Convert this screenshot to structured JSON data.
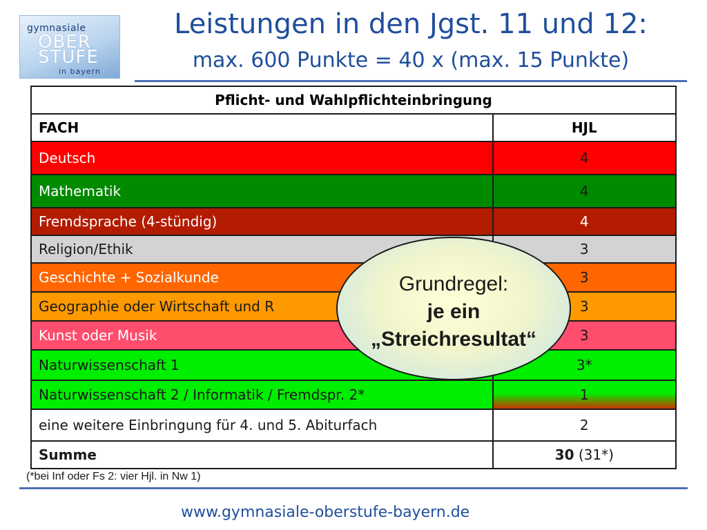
{
  "logo": {
    "line1": "gymnasiale",
    "line2": "OBER",
    "line3": "STUFE",
    "line4": "in bayern"
  },
  "title": {
    "main": "Leistungen in den Jgst. 11 und 12:",
    "sub": "max. 600 Punkte = 40 x (max. 15 Punkte)"
  },
  "table": {
    "heading": "Pflicht- und Wahlpflichteinbringung",
    "columns": [
      "FACH",
      "HJL"
    ],
    "rows": [
      {
        "fach": "Deutsch",
        "hjl": "4",
        "color": "#ff0000"
      },
      {
        "fach": "Mathematik",
        "hjl": "4",
        "color": "#008a00"
      },
      {
        "fach": "Fremdsprache (4-stündig)",
        "hjl": "4",
        "color": "#b31c00"
      },
      {
        "fach": "Religion/Ethik",
        "hjl": "3",
        "color": "#d3d3d3"
      },
      {
        "fach": "Geschichte + Sozialkunde",
        "hjl": "3",
        "color": "#ff6600"
      },
      {
        "fach": "Geographie oder Wirtschaft und R",
        "hjl": "3",
        "color": "#ff9900"
      },
      {
        "fach": "Kunst oder Musik",
        "hjl": "3",
        "color": "#ff4d6d"
      },
      {
        "fach": "Naturwissenschaft 1",
        "hjl": "3*",
        "color": "#00ee00"
      },
      {
        "fach": "Naturwissenschaft 2 / Informatik  / Fremdspr. 2*",
        "hjl": "1",
        "color": "#00ee00"
      },
      {
        "fach": "eine weitere Einbringung für 4. und 5. Abiturfach",
        "hjl": "2",
        "color": "#ffffff"
      }
    ],
    "summe": {
      "label": "Summe",
      "value": "30",
      "extra": " (31*)"
    }
  },
  "footnote": "(*bei Inf oder Fs 2: vier Hjl. in Nw 1)",
  "callout": {
    "line1": "Grundregel:",
    "line2": "je ein",
    "line3": "„Streichresultat“"
  },
  "url": "www.gymnasiale-oberstufe-bayern.de",
  "colors": {
    "title": "#1f4e9c",
    "rule": "#4a6fb0"
  }
}
